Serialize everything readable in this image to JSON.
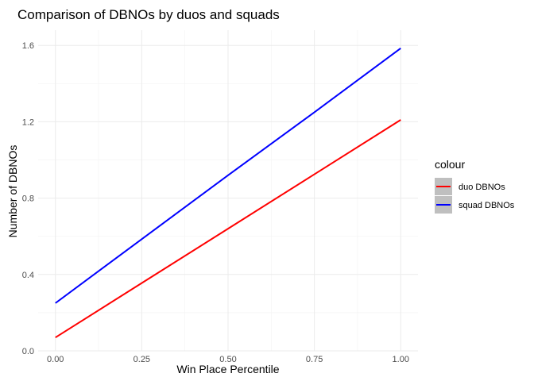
{
  "chart_data": {
    "type": "line",
    "title": "Comparison of DBNOs by duos and squads",
    "xlabel": "Win Place Percentile",
    "ylabel": "Number of DBNOs",
    "xlim": [
      -0.05,
      1.05
    ],
    "ylim": [
      0,
      1.68
    ],
    "x_ticks": [
      0.0,
      0.25,
      0.5,
      0.75,
      1.0
    ],
    "x_tick_labels": [
      "0.00",
      "0.25",
      "0.50",
      "0.75",
      "1.00"
    ],
    "y_ticks": [
      0.0,
      0.4,
      0.8,
      1.2,
      1.6
    ],
    "y_tick_labels": [
      "0.0",
      "0.4",
      "0.8",
      "1.2",
      "1.6"
    ],
    "grid": true,
    "legend": {
      "title": "colour",
      "position": "right"
    },
    "series": [
      {
        "name": "duo DBNOs",
        "color": "#ff0000",
        "x": [
          0.0,
          0.25,
          0.5,
          0.75,
          1.0
        ],
        "y": [
          0.07,
          0.355,
          0.64,
          0.925,
          1.21
        ]
      },
      {
        "name": "squad DBNOs",
        "color": "#0000ff",
        "x": [
          0.0,
          0.25,
          0.5,
          0.75,
          1.0
        ],
        "y": [
          0.25,
          0.585,
          0.92,
          1.25,
          1.585
        ]
      }
    ]
  }
}
